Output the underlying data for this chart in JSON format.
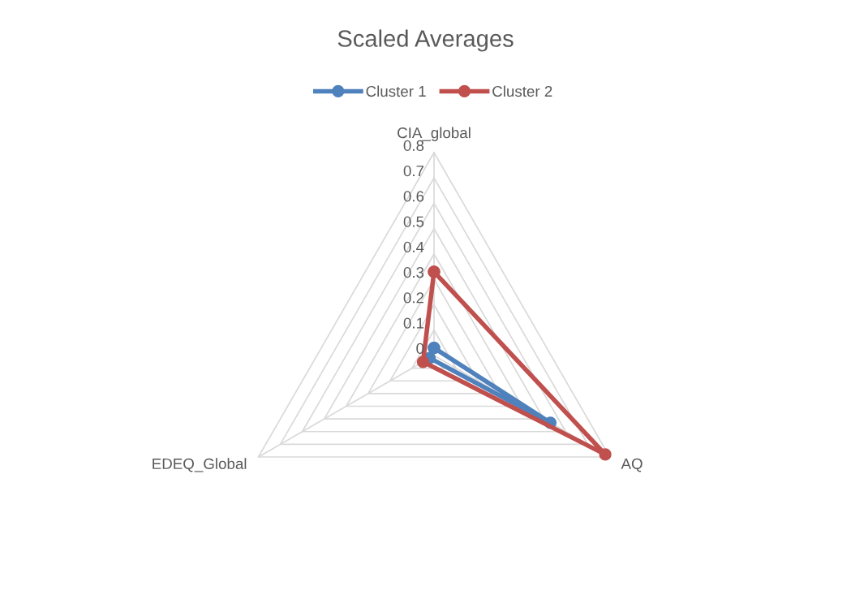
{
  "chart_data": {
    "type": "radar",
    "title": "Scaled Averages",
    "categories": [
      "CIA_global",
      "AQ",
      "EDEQ_Global"
    ],
    "series": [
      {
        "name": "Cluster 1",
        "color": "#4f81bd",
        "values": [
          0.03,
          0.53,
          0.02
        ]
      },
      {
        "name": "Cluster 2",
        "color": "#c0504d",
        "values": [
          0.33,
          0.78,
          0.05
        ]
      }
    ],
    "ylim": [
      0,
      0.8
    ],
    "yticks": [
      0,
      0.1,
      0.2,
      0.3,
      0.4,
      0.5,
      0.6,
      0.7,
      0.8
    ],
    "grid": true,
    "legend": "top",
    "marker": "circle",
    "line_style": "solid"
  }
}
